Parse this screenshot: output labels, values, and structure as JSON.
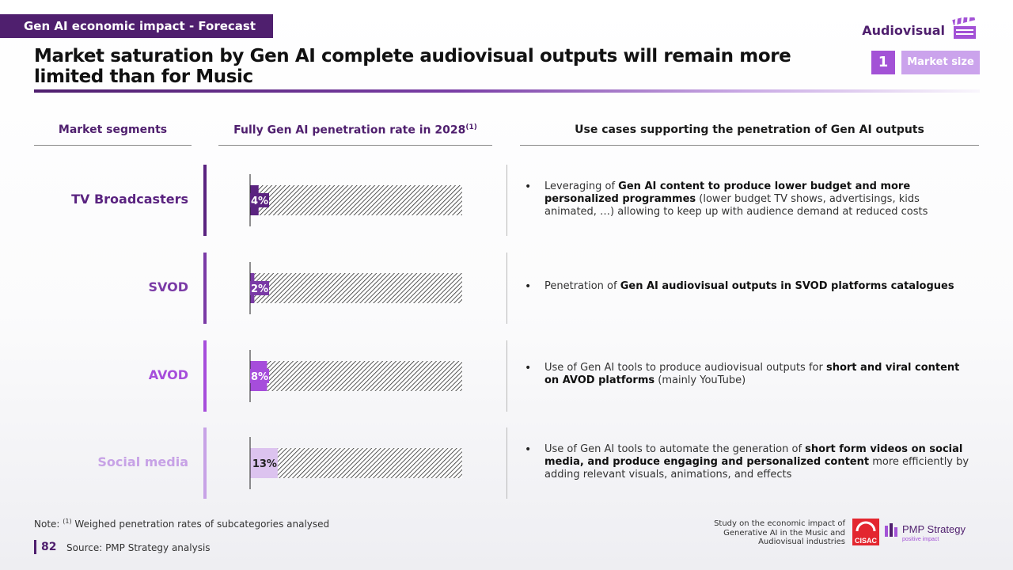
{
  "header": {
    "section_tag": "Gen AI economic impact - Forecast",
    "title": "Market saturation by Gen AI complete audiovisual outputs will remain more limited than for Music",
    "category": "Audiovisual",
    "category_icon": "clapperboard-icon",
    "step_number": "1",
    "step_label": "Market size"
  },
  "columns": {
    "segments": "Market segments",
    "penetration": "Fully Gen AI penetration rate in 2028",
    "penetration_sup": "(1)",
    "use_cases": "Use cases supporting the penetration of Gen AI outputs"
  },
  "chart_data": {
    "type": "bar",
    "orientation": "horizontal",
    "categories": [
      "TV Broadcasters",
      "SVOD",
      "AVOD",
      "Social media"
    ],
    "values": [
      4,
      2,
      8,
      13
    ],
    "value_labels": [
      "4%",
      "2%",
      "8%",
      "13%"
    ],
    "unit": "%",
    "xlim": [
      0,
      100
    ],
    "colors": [
      "#5a2380",
      "#7a3aa6",
      "#a64ddb",
      "#dcc3ef"
    ],
    "remainder_pattern": "hatched"
  },
  "rows": [
    {
      "segment": "TV Broadcasters",
      "color": "#5a2380",
      "use_case": [
        {
          "t": "Leveraging of ",
          "b": false
        },
        {
          "t": "Gen AI content to produce lower budget and more personalized programmes",
          "b": true
        },
        {
          "t": " (lower budget TV shows, advertisings, kids animated, …) allowing to keep up with audience demand at reduced costs",
          "b": false
        }
      ]
    },
    {
      "segment": "SVOD",
      "color": "#7a3aa6",
      "use_case": [
        {
          "t": "Penetration of ",
          "b": false
        },
        {
          "t": "Gen AI audiovisual outputs in SVOD platforms catalogues",
          "b": true
        }
      ]
    },
    {
      "segment": "AVOD",
      "color": "#a64ddb",
      "use_case": [
        {
          "t": "Use of Gen AI tools to produce audiovisual outputs for ",
          "b": false
        },
        {
          "t": "short and viral content on AVOD platforms",
          "b": true
        },
        {
          "t": " (mainly YouTube)",
          "b": false
        }
      ]
    },
    {
      "segment": "Social media",
      "color": "#c7a2e6",
      "use_case": [
        {
          "t": "Use of Gen AI tools to automate the generation of ",
          "b": false
        },
        {
          "t": "short form videos on social media, and produce engaging and personalized content",
          "b": true
        },
        {
          "t": " more efficiently by adding relevant visuals, animations, and effects",
          "b": false
        }
      ]
    }
  ],
  "footer": {
    "note_prefix": "Note: ",
    "note_sup": "(1)",
    "note_text": " Weighed penetration rates of subcategories analysed",
    "page_number": "82",
    "source": "Source:  PMP Strategy analysis",
    "study": "Study on the economic impact of Generative AI in the Music and Audiovisual industries",
    "logo_cisac": "CISAC",
    "logo_pmp": "PMP Strategy",
    "logo_pmp_tagline": "positive impact"
  }
}
